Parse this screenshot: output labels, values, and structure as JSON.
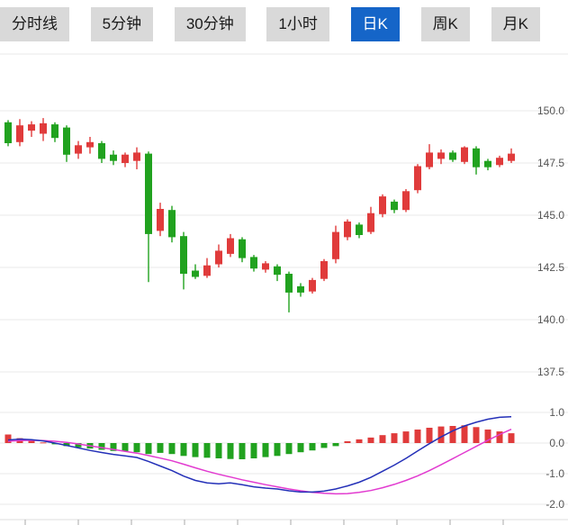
{
  "toolbar": {
    "tabs": [
      {
        "label": "分时线",
        "active": false
      },
      {
        "label": "5分钟",
        "active": false
      },
      {
        "label": "30分钟",
        "active": false
      },
      {
        "label": "1小时",
        "active": false
      },
      {
        "label": "日K",
        "active": true
      },
      {
        "label": "周K",
        "active": false
      },
      {
        "label": "月K",
        "active": false
      }
    ]
  },
  "chart_data": {
    "type": "candlestick",
    "subtype": "daily-kline-with-macd",
    "grid": true,
    "legend_position": "none",
    "price_axis": {
      "side": "right",
      "ticks": [
        150.0,
        147.5,
        145.0,
        142.5,
        140.0,
        137.5
      ],
      "min": 136.5,
      "max": 152.5
    },
    "macd_axis": {
      "side": "right",
      "ticks": [
        1.0,
        0.0,
        -1.0,
        -2.0
      ],
      "min": -2.3,
      "max": 1.3
    },
    "colors": {
      "up": "#e03b3b",
      "down": "#21a21f",
      "dif_line": "#2430b8",
      "dea_line": "#e23bd0",
      "grid": "#e8e8e8",
      "axis_text": "#555555",
      "tab_bg": "#d9d9d9",
      "tab_active": "#1565c8"
    },
    "candles": [
      [
        149.45,
        149.55,
        148.3,
        148.45
      ],
      [
        148.5,
        149.6,
        148.3,
        149.3
      ],
      [
        149.05,
        149.5,
        148.75,
        149.35
      ],
      [
        148.9,
        149.65,
        148.55,
        149.4
      ],
      [
        149.35,
        149.45,
        148.5,
        148.7
      ],
      [
        149.2,
        149.3,
        147.55,
        147.9
      ],
      [
        147.95,
        148.55,
        147.7,
        148.35
      ],
      [
        148.25,
        148.75,
        147.95,
        148.5
      ],
      [
        148.45,
        148.55,
        147.5,
        147.7
      ],
      [
        147.9,
        148.1,
        147.4,
        147.6
      ],
      [
        147.5,
        148.0,
        147.3,
        147.9
      ],
      [
        147.6,
        148.25,
        147.2,
        148.0
      ],
      [
        147.95,
        148.05,
        141.8,
        144.1
      ],
      [
        144.25,
        145.6,
        144.0,
        145.3
      ],
      [
        145.25,
        145.45,
        143.7,
        143.95
      ],
      [
        144.0,
        144.2,
        141.45,
        142.2
      ],
      [
        142.35,
        142.65,
        141.95,
        142.05
      ],
      [
        142.1,
        142.95,
        142.0,
        142.6
      ],
      [
        142.65,
        143.6,
        142.5,
        143.3
      ],
      [
        143.15,
        144.1,
        143.0,
        143.9
      ],
      [
        143.85,
        143.95,
        142.75,
        142.95
      ],
      [
        143.0,
        143.1,
        142.3,
        142.45
      ],
      [
        142.4,
        142.8,
        142.25,
        142.7
      ],
      [
        142.55,
        142.65,
        141.85,
        142.15
      ],
      [
        142.2,
        142.3,
        140.35,
        141.3
      ],
      [
        141.6,
        141.75,
        141.1,
        141.3
      ],
      [
        141.35,
        142.0,
        141.25,
        141.9
      ],
      [
        141.95,
        142.9,
        141.85,
        142.8
      ],
      [
        142.9,
        144.5,
        142.7,
        144.2
      ],
      [
        143.95,
        144.8,
        143.8,
        144.7
      ],
      [
        144.55,
        144.65,
        143.9,
        144.05
      ],
      [
        144.2,
        145.4,
        144.1,
        145.1
      ],
      [
        145.05,
        146.0,
        144.9,
        145.9
      ],
      [
        145.65,
        145.75,
        145.1,
        145.25
      ],
      [
        145.25,
        146.25,
        145.15,
        146.15
      ],
      [
        146.2,
        147.45,
        146.05,
        147.35
      ],
      [
        147.3,
        148.4,
        147.2,
        148.0
      ],
      [
        147.7,
        148.15,
        147.45,
        148.0
      ],
      [
        148.0,
        148.1,
        147.55,
        147.65
      ],
      [
        147.55,
        148.3,
        147.45,
        148.25
      ],
      [
        148.2,
        148.3,
        146.95,
        147.3
      ],
      [
        147.6,
        147.7,
        147.15,
        147.3
      ],
      [
        147.4,
        147.85,
        147.3,
        147.75
      ],
      [
        147.6,
        148.2,
        147.5,
        147.95
      ]
    ],
    "macd": {
      "histogram": [
        0.28,
        0.16,
        0.07,
        0.02,
        -0.04,
        -0.1,
        -0.14,
        -0.18,
        -0.22,
        -0.26,
        -0.28,
        -0.3,
        -0.36,
        -0.32,
        -0.36,
        -0.42,
        -0.46,
        -0.48,
        -0.5,
        -0.52,
        -0.53,
        -0.5,
        -0.46,
        -0.42,
        -0.36,
        -0.3,
        -0.24,
        -0.16,
        -0.1,
        0.06,
        0.12,
        0.18,
        0.26,
        0.32,
        0.38,
        0.44,
        0.5,
        0.54,
        0.56,
        0.58,
        0.52,
        0.44,
        0.38,
        0.32
      ],
      "dif": [
        0.1,
        0.13,
        0.11,
        0.07,
        0.0,
        -0.08,
        -0.16,
        -0.24,
        -0.31,
        -0.37,
        -0.42,
        -0.47,
        -0.6,
        -0.75,
        -0.9,
        -1.08,
        -1.22,
        -1.3,
        -1.33,
        -1.3,
        -1.36,
        -1.43,
        -1.47,
        -1.5,
        -1.56,
        -1.6,
        -1.6,
        -1.57,
        -1.5,
        -1.4,
        -1.28,
        -1.12,
        -0.92,
        -0.72,
        -0.5,
        -0.26,
        -0.02,
        0.2,
        0.4,
        0.56,
        0.68,
        0.78,
        0.84,
        0.86
      ],
      "dea": [
        0.06,
        0.08,
        0.09,
        0.08,
        0.06,
        0.02,
        -0.03,
        -0.09,
        -0.15,
        -0.21,
        -0.27,
        -0.33,
        -0.41,
        -0.49,
        -0.58,
        -0.69,
        -0.81,
        -0.92,
        -1.02,
        -1.11,
        -1.2,
        -1.28,
        -1.36,
        -1.43,
        -1.5,
        -1.56,
        -1.61,
        -1.64,
        -1.66,
        -1.65,
        -1.61,
        -1.55,
        -1.46,
        -1.35,
        -1.22,
        -1.07,
        -0.9,
        -0.71,
        -0.51,
        -0.31,
        -0.11,
        0.09,
        0.28,
        0.45
      ]
    }
  }
}
